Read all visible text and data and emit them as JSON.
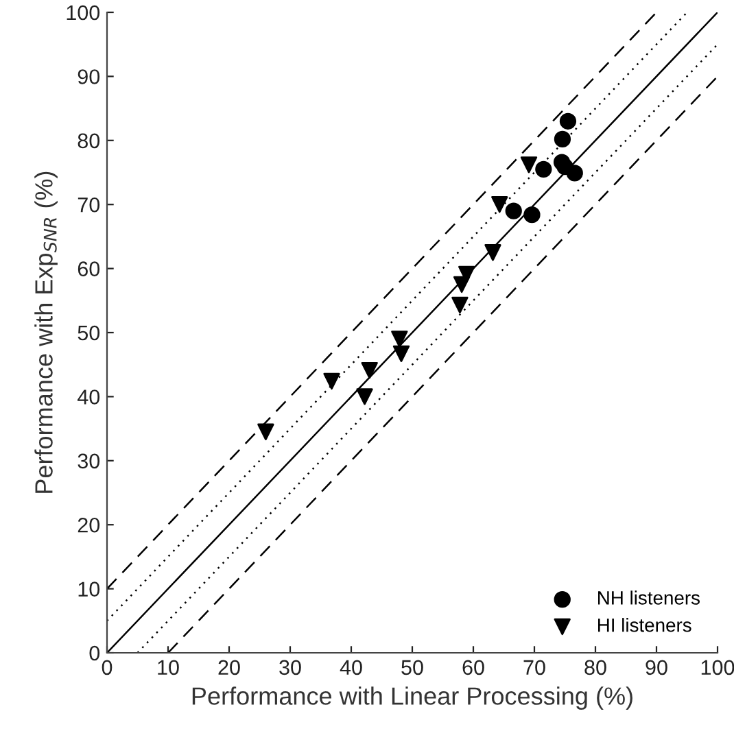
{
  "chart_data": {
    "type": "scatter",
    "xlabel": "Performance with Linear Processing (%)",
    "ylabel": "Performance with Exp$_{SNR}$ (%)",
    "xlim": [
      0,
      100
    ],
    "ylim": [
      0,
      100
    ],
    "xticks": [
      0,
      10,
      20,
      30,
      40,
      50,
      60,
      70,
      80,
      90,
      100
    ],
    "yticks": [
      0,
      10,
      20,
      30,
      40,
      50,
      60,
      70,
      80,
      90,
      100
    ],
    "grid": false,
    "legend": "bottom right",
    "series": [
      {
        "type": "line",
        "color": "#000000",
        "line_style": "solid",
        "x": [
          0,
          100
        ],
        "values": [
          0,
          100
        ]
      },
      {
        "type": "line",
        "color": "#000000",
        "line_style": "dotted",
        "x": [
          0,
          95
        ],
        "values": [
          5,
          100
        ]
      },
      {
        "type": "line",
        "color": "#000000",
        "line_style": "dotted",
        "x": [
          5,
          100
        ],
        "values": [
          0,
          95
        ]
      },
      {
        "type": "line",
        "color": "#000000",
        "line_style": "dashed",
        "x": [
          0,
          90
        ],
        "values": [
          10,
          100
        ]
      },
      {
        "type": "line",
        "color": "#000000",
        "line_style": "dashed",
        "x": [
          10,
          100
        ],
        "values": [
          0,
          90
        ]
      },
      {
        "name": "NH listeners",
        "color": "#000000",
        "marker": "circle",
        "x": [
          75.5,
          74.6,
          74.5,
          75.0,
          76.6,
          71.5,
          66.6,
          69.6
        ],
        "values": [
          83.0,
          80.2,
          76.6,
          75.9,
          74.9,
          75.5,
          69.0,
          68.4
        ]
      },
      {
        "name": "HI listeners",
        "color": "#000000",
        "marker": "triangle",
        "x": [
          69.1,
          64.3,
          63.2,
          58.9,
          58.1,
          57.8,
          47.9,
          48.2,
          43.0,
          36.8,
          42.2,
          26.0
        ],
        "values": [
          76.2,
          70.0,
          62.5,
          59.1,
          57.5,
          54.3,
          49.0,
          46.7,
          44.1,
          42.4,
          40.0,
          34.5
        ]
      }
    ]
  }
}
